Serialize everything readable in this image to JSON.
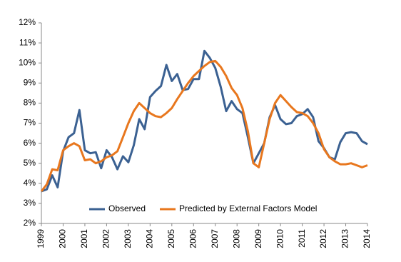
{
  "chart_data": {
    "type": "line",
    "x": [
      1999,
      1999.25,
      1999.5,
      1999.75,
      2000,
      2000.25,
      2000.5,
      2000.75,
      2001,
      2001.25,
      2001.5,
      2001.75,
      2002,
      2002.25,
      2002.5,
      2002.75,
      2003,
      2003.25,
      2003.5,
      2003.75,
      2004,
      2004.25,
      2004.5,
      2004.75,
      2005,
      2005.25,
      2005.5,
      2005.75,
      2006,
      2006.25,
      2006.5,
      2006.75,
      2007,
      2007.25,
      2007.5,
      2007.75,
      2008,
      2008.25,
      2008.5,
      2008.75,
      2009,
      2009.25,
      2009.5,
      2009.75,
      2010,
      2010.25,
      2010.5,
      2010.75,
      2011,
      2011.25,
      2011.5,
      2011.75,
      2012,
      2012.25,
      2012.5,
      2012.75,
      2013,
      2013.25,
      2013.5,
      2013.75,
      2014
    ],
    "series": [
      {
        "name": "Observed",
        "color": "#3b6192",
        "values": [
          3.6,
          3.7,
          4.4,
          3.8,
          5.6,
          6.3,
          6.5,
          7.65,
          5.65,
          5.5,
          5.55,
          4.75,
          5.65,
          5.3,
          4.7,
          5.35,
          5.05,
          5.9,
          7.2,
          6.7,
          8.3,
          8.6,
          8.85,
          9.9,
          9.1,
          9.45,
          8.65,
          8.7,
          9.2,
          9.2,
          10.6,
          10.25,
          9.75,
          8.8,
          7.6,
          8.1,
          7.7,
          7.5,
          6.3,
          5.0,
          5.5,
          6.0,
          7.3,
          7.9,
          7.2,
          6.95,
          7.0,
          7.35,
          7.45,
          7.7,
          7.3,
          6.1,
          5.75,
          5.3,
          5.2,
          6.05,
          6.5,
          6.55,
          6.5,
          6.1,
          5.95
        ]
      },
      {
        "name": "Predicted by External Factors Model",
        "color": "#e8771e",
        "values": [
          3.6,
          3.95,
          4.7,
          4.65,
          5.65,
          5.85,
          6.0,
          5.85,
          5.15,
          5.2,
          5.0,
          5.1,
          5.3,
          5.4,
          5.6,
          6.3,
          7.0,
          7.6,
          8.0,
          7.75,
          7.5,
          7.35,
          7.3,
          7.5,
          7.75,
          8.2,
          8.6,
          9.0,
          9.35,
          9.6,
          9.85,
          10.05,
          10.1,
          9.8,
          9.35,
          8.75,
          8.4,
          7.75,
          6.6,
          5.0,
          4.8,
          6.0,
          7.2,
          8.0,
          8.4,
          8.1,
          7.8,
          7.55,
          7.5,
          7.35,
          7.0,
          6.5,
          5.7,
          5.3,
          5.1,
          4.95,
          4.95,
          5.0,
          4.9,
          4.8,
          4.9
        ]
      }
    ],
    "xlim": [
      1999,
      2014
    ],
    "xticks": [
      1999,
      2000,
      2001,
      2002,
      2003,
      2004,
      2005,
      2006,
      2007,
      2008,
      2009,
      2010,
      2011,
      2012,
      2013,
      2014
    ],
    "ylim": [
      2,
      12
    ],
    "yticks": [
      {
        "value": 2,
        "label": "2%"
      },
      {
        "value": 3,
        "label": "3%"
      },
      {
        "value": 4,
        "label": "4%"
      },
      {
        "value": 5,
        "label": "5%"
      },
      {
        "value": 6,
        "label": "6%"
      },
      {
        "value": 7,
        "label": "7%"
      },
      {
        "value": 8,
        "label": "8%"
      },
      {
        "value": 9,
        "label": "9%"
      },
      {
        "value": 10,
        "label": "10%"
      },
      {
        "value": 11,
        "label": "11%"
      },
      {
        "value": 12,
        "label": "12%"
      }
    ],
    "grid": false,
    "legend": "bottom"
  }
}
